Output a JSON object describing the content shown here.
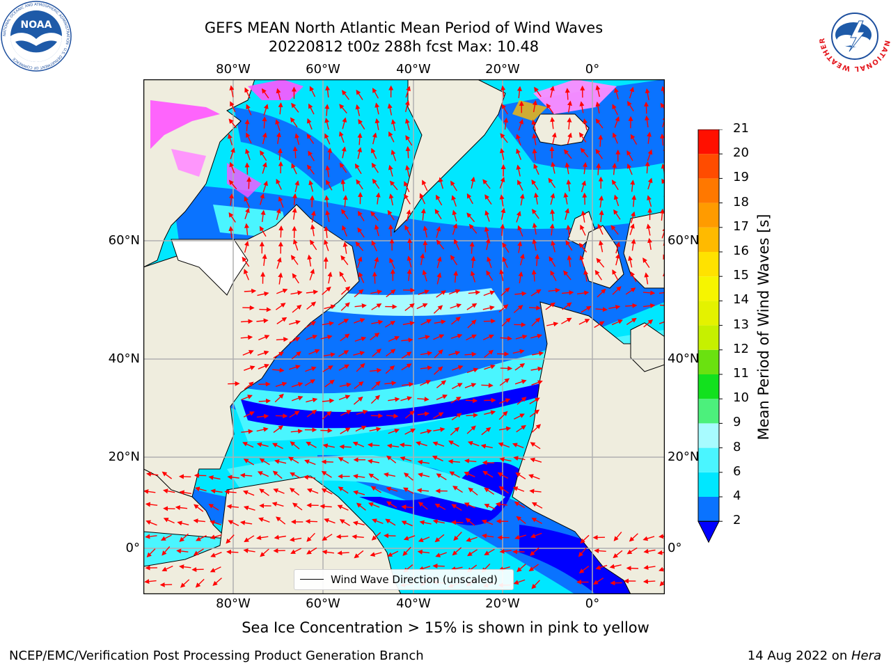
{
  "title": {
    "line1": "GEFS MEAN North Atlantic Mean Period of Wind Waves",
    "line2": "20220812 t00z 288h fcst   Max: 10.48"
  },
  "map": {
    "longitude_labels": [
      "80°W",
      "60°W",
      "40°W",
      "20°W",
      "0°"
    ],
    "latitude_labels": [
      "60°N",
      "40°N",
      "20°N",
      "0°"
    ],
    "extent": {
      "lon_min": -100,
      "lon_max": 15,
      "lat_min": -8,
      "lat_max": 80
    },
    "legend_label": "Wind Wave Direction (unscaled)",
    "arrow_color": "#ff0000",
    "land_color": "#efedde",
    "grid": true
  },
  "colorbar": {
    "title": "Mean Period of Wind Waves [s]",
    "ticks": [
      "2",
      "4",
      "6",
      "8",
      "9",
      "10",
      "11",
      "12",
      "13",
      "14",
      "15",
      "16",
      "17",
      "18",
      "19",
      "20",
      "21"
    ],
    "colors": [
      "#0a73ff",
      "#00e7ff",
      "#4af5ff",
      "#a8fbff",
      "#4cf07c",
      "#12e11e",
      "#6ae110",
      "#c6f000",
      "#e4f200",
      "#f6f500",
      "#ffe200",
      "#ffba00",
      "#ff9b00",
      "#ff7800",
      "#ff4c00",
      "#ff1000"
    ],
    "under_color": "#0000ff"
  },
  "caption": "Sea Ice Concentration > 15% is shown in pink to yellow",
  "footer": {
    "left": "NCEP/EMC/Verification Post Processing Product Generation Branch",
    "right_date": "14 Aug 2022 on ",
    "right_machine": "Hera"
  },
  "logos": {
    "noaa_text": "NOAA",
    "noaa_ring": "NATIONAL OCEANIC AND ATMOSPHERIC ADMINISTRATION · U.S. DEPARTMENT OF COMMERCE",
    "nws_ring": "NATIONAL WEATHER SERVICE"
  }
}
